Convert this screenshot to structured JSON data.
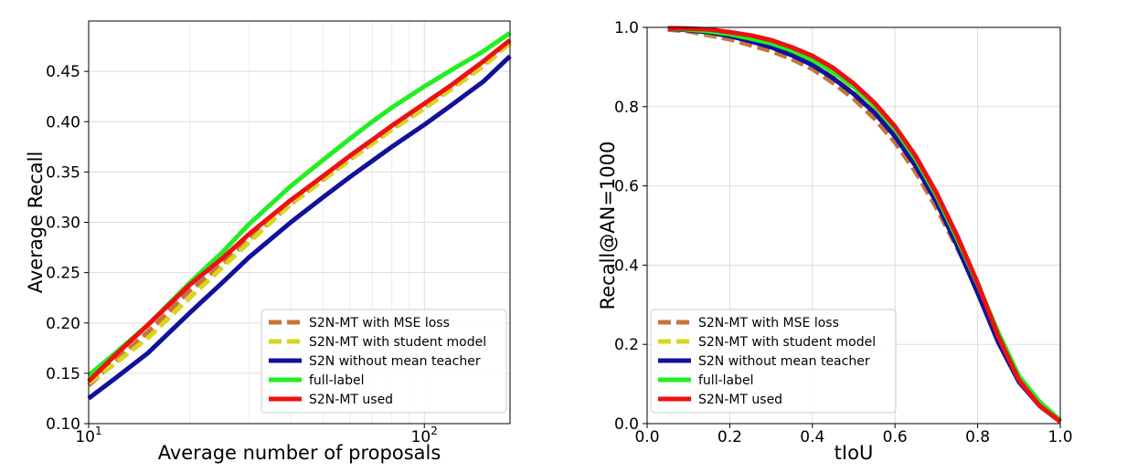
{
  "chart_data": [
    {
      "type": "line",
      "xlabel": "Average number of proposals",
      "ylabel": "Average Recall",
      "xscale": "log",
      "xlim": [
        10,
        180
      ],
      "ylim": [
        0.1,
        0.5
      ],
      "x_ticks": [
        {
          "value": 10,
          "base": "10",
          "exp": "1"
        },
        {
          "value": 100,
          "base": "10",
          "exp": "2"
        }
      ],
      "y_ticks": [
        "0.10",
        "0.15",
        "0.20",
        "0.25",
        "0.30",
        "0.35",
        "0.40",
        "0.45"
      ],
      "y_tick_values": [
        0.1,
        0.15,
        0.2,
        0.25,
        0.3,
        0.35,
        0.4,
        0.45
      ],
      "grid": true,
      "legend_position": "bottom-right",
      "x": [
        10,
        12,
        15,
        20,
        25,
        30,
        40,
        50,
        60,
        70,
        80,
        100,
        120,
        150,
        180
      ],
      "series": [
        {
          "name": "S2N-MT with MSE loss",
          "color": "#c8743a",
          "style": "dashed",
          "values": [
            0.138,
            0.162,
            0.191,
            0.232,
            0.258,
            0.283,
            0.318,
            0.343,
            0.363,
            0.379,
            0.393,
            0.415,
            0.434,
            0.457,
            0.48
          ]
        },
        {
          "name": "S2N-MT with student model",
          "color": "#d6d61c",
          "style": "dashed",
          "values": [
            0.14,
            0.16,
            0.185,
            0.225,
            0.255,
            0.28,
            0.318,
            0.342,
            0.362,
            0.378,
            0.392,
            0.413,
            0.432,
            0.455,
            0.478
          ]
        },
        {
          "name": "S2N without mean teacher",
          "color": "#11119c",
          "style": "solid",
          "values": [
            0.125,
            0.145,
            0.17,
            0.21,
            0.24,
            0.265,
            0.3,
            0.325,
            0.345,
            0.361,
            0.375,
            0.397,
            0.416,
            0.44,
            0.465
          ]
        },
        {
          "name": "full-label",
          "color": "#22ee22",
          "style": "solid",
          "values": [
            0.148,
            0.17,
            0.198,
            0.24,
            0.27,
            0.298,
            0.336,
            0.362,
            0.383,
            0.4,
            0.414,
            0.435,
            0.451,
            0.47,
            0.488
          ]
        },
        {
          "name": "S2N-MT used",
          "color": "#ee1111",
          "style": "solid",
          "values": [
            0.142,
            0.168,
            0.198,
            0.238,
            0.264,
            0.288,
            0.322,
            0.346,
            0.366,
            0.382,
            0.396,
            0.418,
            0.436,
            0.46,
            0.481
          ]
        }
      ]
    },
    {
      "type": "line",
      "xlabel": "tIoU",
      "ylabel": "Recall@AN=1000",
      "xlim": [
        0.0,
        1.0
      ],
      "ylim": [
        0.0,
        1.0
      ],
      "x_ticks": [
        "0.0",
        "0.2",
        "0.4",
        "0.6",
        "0.8",
        "1.0"
      ],
      "x_tick_values": [
        0.0,
        0.2,
        0.4,
        0.6,
        0.8,
        1.0
      ],
      "y_ticks": [
        "0.0",
        "0.2",
        "0.4",
        "0.6",
        "0.8",
        "1.0"
      ],
      "y_tick_values": [
        0.0,
        0.2,
        0.4,
        0.6,
        0.8,
        1.0
      ],
      "grid": true,
      "legend_position": "bottom-left",
      "x": [
        0.05,
        0.1,
        0.15,
        0.2,
        0.25,
        0.3,
        0.35,
        0.4,
        0.45,
        0.5,
        0.55,
        0.6,
        0.65,
        0.7,
        0.75,
        0.8,
        0.85,
        0.9,
        0.95,
        1.0
      ],
      "series": [
        {
          "name": "S2N-MT with MSE loss",
          "color": "#c8743a",
          "style": "dashed",
          "values": [
            0.995,
            0.99,
            0.98,
            0.97,
            0.955,
            0.94,
            0.92,
            0.895,
            0.86,
            0.82,
            0.77,
            0.71,
            0.635,
            0.545,
            0.445,
            0.34,
            0.215,
            0.11,
            0.045,
            0.005
          ]
        },
        {
          "name": "S2N-MT with student model",
          "color": "#d6d61c",
          "style": "dashed",
          "values": [
            0.997,
            0.993,
            0.985,
            0.978,
            0.965,
            0.952,
            0.935,
            0.91,
            0.878,
            0.838,
            0.79,
            0.73,
            0.655,
            0.565,
            0.46,
            0.35,
            0.22,
            0.115,
            0.048,
            0.005
          ]
        },
        {
          "name": "S2N without mean teacher",
          "color": "#11119c",
          "style": "solid",
          "values": [
            0.997,
            0.993,
            0.987,
            0.978,
            0.965,
            0.95,
            0.93,
            0.905,
            0.872,
            0.832,
            0.785,
            0.725,
            0.65,
            0.56,
            0.45,
            0.33,
            0.205,
            0.105,
            0.045,
            0.005
          ]
        },
        {
          "name": "full-label",
          "color": "#22ee22",
          "style": "solid",
          "values": [
            0.998,
            0.995,
            0.99,
            0.983,
            0.972,
            0.96,
            0.942,
            0.918,
            0.888,
            0.85,
            0.803,
            0.743,
            0.668,
            0.576,
            0.468,
            0.352,
            0.23,
            0.12,
            0.055,
            0.008
          ]
        },
        {
          "name": "S2N-MT used",
          "color": "#ee1111",
          "style": "solid",
          "values": [
            0.998,
            0.997,
            0.995,
            0.988,
            0.98,
            0.968,
            0.95,
            0.928,
            0.898,
            0.858,
            0.81,
            0.75,
            0.675,
            0.583,
            0.475,
            0.355,
            0.22,
            0.11,
            0.045,
            0.005
          ]
        }
      ]
    }
  ]
}
